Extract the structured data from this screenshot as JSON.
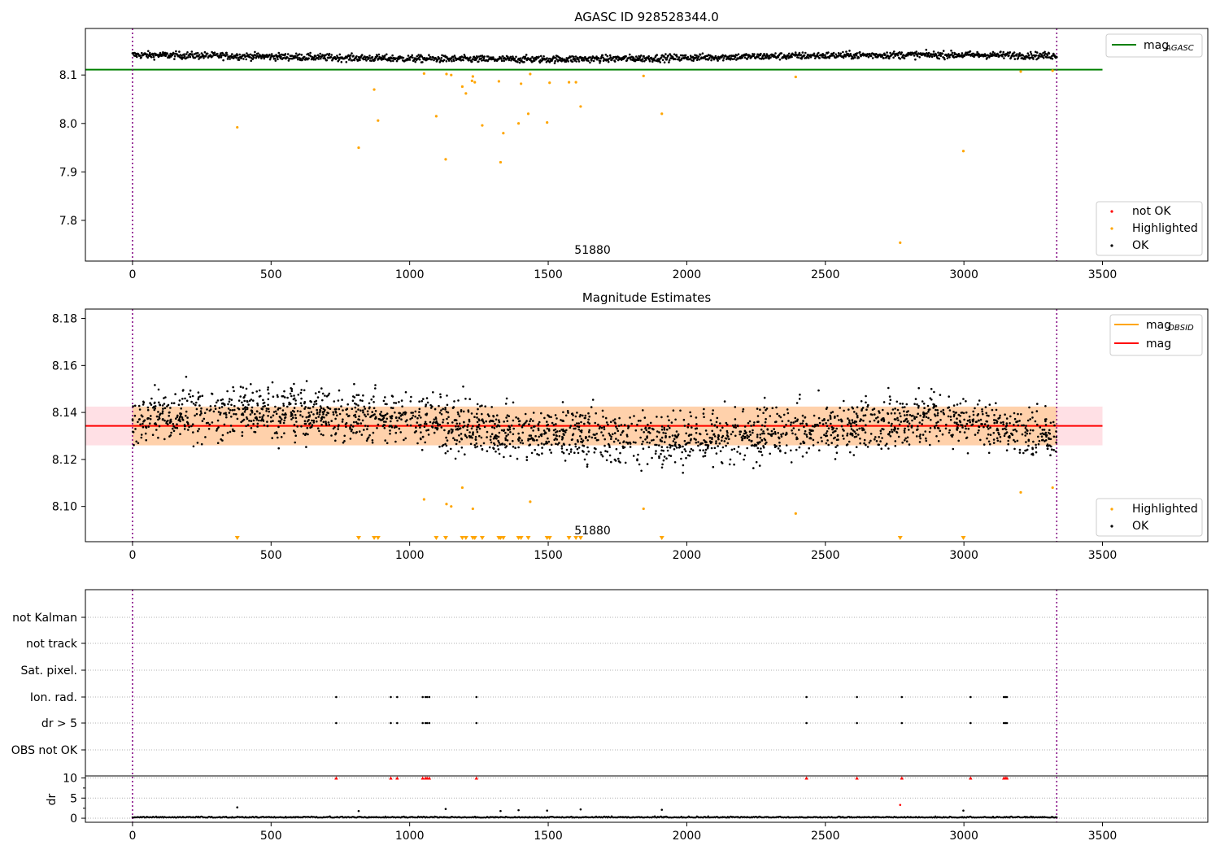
{
  "chart_data": [
    {
      "type": "scatter",
      "title": "AGASC ID 928528344.0",
      "x_range": [
        -170,
        3880
      ],
      "y_range": [
        7.716,
        8.196
      ],
      "x_ticks": [
        0,
        500,
        1000,
        1500,
        2000,
        2500,
        3000,
        3500
      ],
      "x_tick_labels": [
        "0",
        "500",
        "1000",
        "1500",
        "2000",
        "2500",
        "3000",
        "3500"
      ],
      "y_ticks": [
        7.8,
        7.9,
        8.0,
        8.1
      ],
      "y_tick_labels": [
        "7.8",
        "7.9",
        "8.0",
        "8.1"
      ],
      "obsid_boundaries": [
        0,
        3335
      ],
      "obsid_label": "51880",
      "obsid_label_x": 1660,
      "mag_line": {
        "name": "mag_AGASC",
        "value": 8.111,
        "x_range": [
          -170,
          3500
        ],
        "color": "#008000"
      },
      "legend_lines": {
        "main": "mag",
        "sub": "AGASC"
      },
      "legend_points": [
        "not OK",
        "Highlighted",
        "OK"
      ],
      "ok_series": {
        "name": "OK",
        "color": "#000000",
        "x_range": [
          0,
          3335
        ],
        "baseline": 8.137,
        "amplitude": 0.009,
        "noise": 0.006,
        "count": 1700
      },
      "highlighted": {
        "name": "Highlighted",
        "color": "#ffa500",
        "points": [
          [
            378,
            7.992
          ],
          [
            816,
            7.95
          ],
          [
            872,
            8.07
          ],
          [
            886,
            8.006
          ],
          [
            1052,
            8.103
          ],
          [
            1096,
            8.015
          ],
          [
            1130,
            7.926
          ],
          [
            1133,
            8.102
          ],
          [
            1150,
            8.1
          ],
          [
            1190,
            8.076
          ],
          [
            1203,
            8.062
          ],
          [
            1225,
            8.088
          ],
          [
            1228,
            8.097
          ],
          [
            1235,
            8.085
          ],
          [
            1262,
            7.996
          ],
          [
            1322,
            8.087
          ],
          [
            1328,
            7.92
          ],
          [
            1338,
            7.98
          ],
          [
            1393,
            8.0
          ],
          [
            1402,
            8.082
          ],
          [
            1428,
            8.02
          ],
          [
            1435,
            8.102
          ],
          [
            1496,
            8.002
          ],
          [
            1505,
            8.084
          ],
          [
            1575,
            8.085
          ],
          [
            1600,
            8.085
          ],
          [
            1617,
            8.035
          ],
          [
            1844,
            8.098
          ],
          [
            1910,
            8.02
          ],
          [
            2393,
            8.096
          ],
          [
            2770,
            7.754
          ],
          [
            2998,
            7.943
          ],
          [
            3205,
            8.107
          ],
          [
            3320,
            8.109
          ]
        ]
      },
      "legend_upper": "upper-right",
      "legend_lower": "lower-right"
    },
    {
      "type": "scatter",
      "title": "Magnitude Estimates",
      "x_range": [
        -170,
        3880
      ],
      "y_range": [
        8.085,
        8.184
      ],
      "x_ticks": [
        0,
        500,
        1000,
        1500,
        2000,
        2500,
        3000,
        3500
      ],
      "x_tick_labels": [
        "0",
        "500",
        "1000",
        "1500",
        "2000",
        "2500",
        "3000",
        "3500"
      ],
      "y_ticks": [
        8.1,
        8.12,
        8.14,
        8.16,
        8.18
      ],
      "y_tick_labels": [
        "8.10",
        "8.12",
        "8.14",
        "8.16",
        "8.18"
      ],
      "obsid_boundaries": [
        0,
        3335
      ],
      "obsid_label": "51880",
      "obsid_label_x": 1660,
      "mag_obsid": {
        "value": 8.1343,
        "band": [
          8.126,
          8.1425
        ],
        "x_range": [
          0,
          3335
        ],
        "color": "#ffa500"
      },
      "mag": {
        "value": 8.1343,
        "band": [
          8.126,
          8.1425
        ],
        "x_range": [
          -170,
          3500
        ],
        "color": "#ff0000"
      },
      "legend_lines": [
        {
          "main": "mag",
          "sub": "OBSID",
          "color": "#ffa500"
        },
        {
          "main": "mag",
          "sub": "",
          "color": "#ff0000"
        }
      ],
      "legend_points": [
        "Highlighted",
        "OK"
      ],
      "ok_series": {
        "name": "OK",
        "color": "#000000",
        "x_range": [
          0,
          3335
        ],
        "count": 2400
      },
      "highlighted": {
        "name": "Highlighted",
        "color": "#ffa500",
        "points": [
          [
            1052,
            8.103
          ],
          [
            1133,
            8.101
          ],
          [
            1150,
            8.1
          ],
          [
            1190,
            8.108
          ],
          [
            1228,
            8.099
          ],
          [
            1435,
            8.102
          ],
          [
            1844,
            8.099
          ],
          [
            2393,
            8.097
          ],
          [
            3205,
            8.106
          ],
          [
            3320,
            8.108
          ]
        ],
        "clipped_x": [
          378,
          816,
          872,
          886,
          1096,
          1130,
          1190,
          1203,
          1228,
          1235,
          1262,
          1322,
          1328,
          1338,
          1393,
          1402,
          1428,
          1496,
          1505,
          1575,
          1600,
          1617,
          1910,
          2770,
          2998
        ]
      },
      "legend_upper": "upper-right",
      "legend_lower": "lower-right"
    },
    {
      "type": "scatter",
      "title": "",
      "x_range": [
        -170,
        3880
      ],
      "flag_rows": [
        "not Kalman",
        "not track",
        "Sat. pixel.",
        "Ion. rad.",
        "dr > 5",
        "OBS not OK"
      ],
      "flagged_x": [
        735,
        932,
        955,
        1047,
        1057,
        1063,
        1071,
        1241,
        2432,
        2614,
        2776,
        3024,
        3144,
        3150,
        3155
      ],
      "flagged_rows": [
        "Ion. rad.",
        "dr > 5"
      ],
      "dr_ylabel": "dr",
      "dr_range": [
        -1,
        10.5
      ],
      "dr_ticks": [
        0,
        5,
        10
      ],
      "dr_tick_labels": [
        "0",
        "5",
        "10"
      ],
      "dr_clip_value": 10,
      "dr_clip_color": "#ff0000",
      "dr_extra_points": [
        [
          378,
          2.7,
          "#000000"
        ],
        [
          816,
          1.8,
          "#000000"
        ],
        [
          1130,
          2.3,
          "#000000"
        ],
        [
          1328,
          1.8,
          "#000000"
        ],
        [
          1393,
          2.0,
          "#000000"
        ],
        [
          1496,
          1.9,
          "#000000"
        ],
        [
          1617,
          2.2,
          "#000000"
        ],
        [
          1910,
          2.1,
          "#000000"
        ],
        [
          2770,
          3.3,
          "#ff0000"
        ],
        [
          2998,
          1.9,
          "#000000"
        ]
      ],
      "x_ticks": [
        0,
        500,
        1000,
        1500,
        2000,
        2500,
        3000,
        3500
      ],
      "x_tick_labels": [
        "0",
        "500",
        "1000",
        "1500",
        "2000",
        "2500",
        "3000",
        "3500"
      ],
      "obsid_boundaries": [
        0,
        3335
      ]
    }
  ]
}
